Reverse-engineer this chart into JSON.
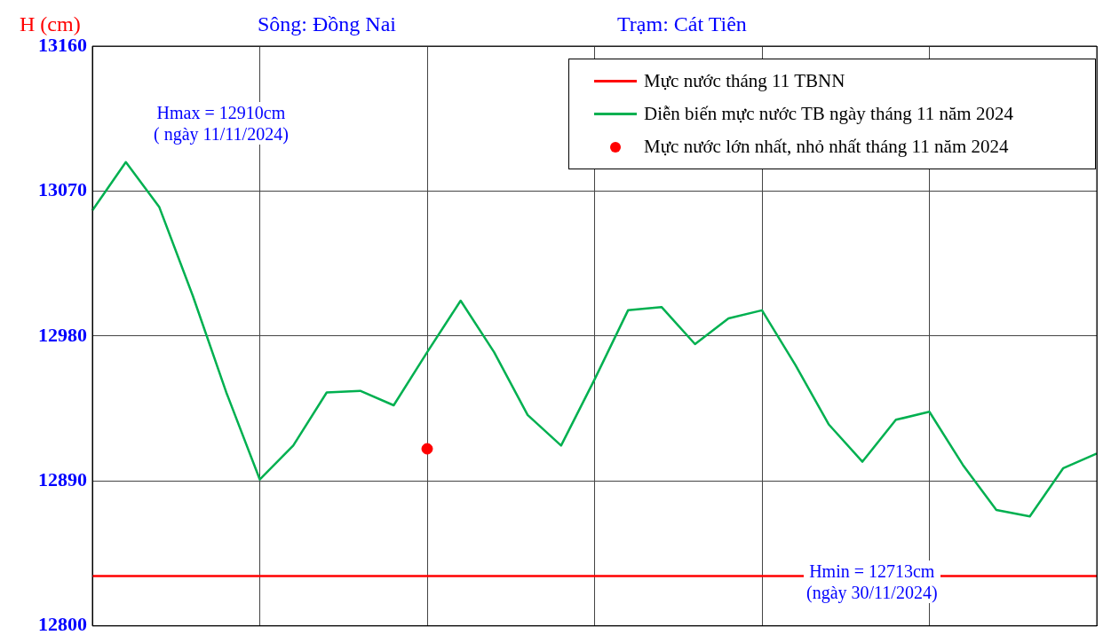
{
  "chart_data": {
    "type": "line",
    "title": "Sông: Đồng Nai",
    "subtitle": "Trạm: Cát Tiên",
    "ylabel": "H (cm)",
    "categories": [
      null,
      null,
      null,
      null,
      null,
      null,
      null,
      null,
      null,
      null,
      null,
      null,
      null,
      null,
      null,
      null,
      null,
      null,
      null,
      null,
      null,
      null,
      null,
      null,
      null,
      null,
      null,
      null,
      null,
      null,
      null
    ],
    "ylim": [
      12800,
      13160
    ],
    "yticks": [
      12800,
      12890,
      12980,
      13070,
      13160
    ],
    "grid": true,
    "tick_labels": "y",
    "legend": "top right",
    "series": [
      {
        "name": "Diễn biến mực nước TB ngày tháng 11 năm 2024",
        "color": "#00b050",
        "marker": "none",
        "values": [
          13058,
          13088,
          13060,
          13005,
          12945,
          12891,
          12912,
          12945,
          12946,
          12937,
          12970,
          13002,
          12970,
          12931,
          12912,
          12953,
          12996,
          12998,
          12975,
          12991,
          12996,
          12962,
          12925,
          12902,
          12928,
          12933,
          12900,
          12872,
          12868,
          12898,
          12907
        ]
      },
      {
        "name": "Mực nước lớn nhất, nhỏ nhất tháng 11 năm 2024",
        "type": "scatter",
        "color": "#ff0000",
        "marker": "circle",
        "values": [
          null,
          null,
          null,
          null,
          null,
          null,
          null,
          null,
          null,
          null,
          12910,
          null,
          null,
          null,
          null,
          null,
          null,
          null,
          null,
          null,
          null,
          null,
          null,
          null,
          null,
          null,
          null,
          null,
          null,
          null,
          null
        ]
      }
    ],
    "ref_lines": [
      {
        "axis": "y",
        "value": 12831,
        "label": "Mực nước tháng 11 TBNN",
        "color": "#ff0000",
        "line_style": "solid"
      }
    ],
    "annotations": [
      "Hmax = 12910cm\n( ngày 11/11/2024)",
      "Hmin = 12713cm\n(ngày 30/11/2024)"
    ]
  }
}
